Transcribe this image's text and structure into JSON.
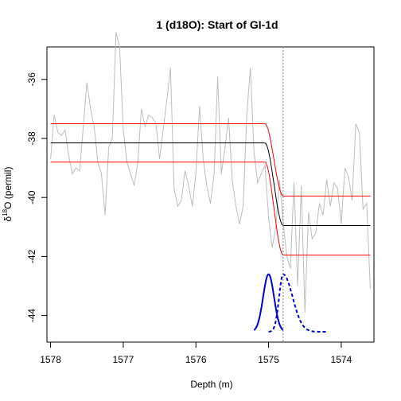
{
  "chart_data": {
    "type": "line",
    "title": "1 (d18O): Start of GI-1d",
    "xlabel": "Depth (m)",
    "ylabel_prefix": "δ",
    "ylabel_sup": "18",
    "ylabel_suffix": "O (permil)",
    "xlim": [
      1578.05,
      1573.55
    ],
    "ylim": [
      -44.9,
      -34.9
    ],
    "x_reversed": true,
    "x_ticks": [
      1578,
      1577,
      1576,
      1575,
      1574
    ],
    "y_ticks": [
      -36,
      -38,
      -40,
      -42,
      -44
    ],
    "vline_x": 1574.8,
    "series": [
      {
        "role": "data",
        "color": "#bebebe",
        "points": [
          [
            1578.0,
            -38.7
          ],
          [
            1577.95,
            -37.2
          ],
          [
            1577.9,
            -37.8
          ],
          [
            1577.85,
            -37.9
          ],
          [
            1577.8,
            -37.7
          ],
          [
            1577.75,
            -38.6
          ],
          [
            1577.7,
            -39.2
          ],
          [
            1577.65,
            -39.0
          ],
          [
            1577.6,
            -39.1
          ],
          [
            1577.55,
            -37.6
          ],
          [
            1577.5,
            -36.1
          ],
          [
            1577.45,
            -37.0
          ],
          [
            1577.4,
            -37.6
          ],
          [
            1577.35,
            -38.8
          ],
          [
            1577.3,
            -39.2
          ],
          [
            1577.25,
            -40.6
          ],
          [
            1577.2,
            -38.3
          ],
          [
            1577.15,
            -38.0
          ],
          [
            1577.1,
            -34.4
          ],
          [
            1577.05,
            -34.9
          ],
          [
            1577.0,
            -37.7
          ],
          [
            1576.95,
            -38.8
          ],
          [
            1576.9,
            -39.2
          ],
          [
            1576.85,
            -39.6
          ],
          [
            1576.8,
            -38.8
          ],
          [
            1576.75,
            -37.0
          ],
          [
            1576.7,
            -37.6
          ],
          [
            1576.65,
            -37.2
          ],
          [
            1576.6,
            -37.3
          ],
          [
            1576.55,
            -37.5
          ],
          [
            1576.5,
            -38.7
          ],
          [
            1576.45,
            -37.7
          ],
          [
            1576.4,
            -36.7
          ],
          [
            1576.35,
            -35.6
          ],
          [
            1576.3,
            -39.7
          ],
          [
            1576.25,
            -40.3
          ],
          [
            1576.2,
            -40.1
          ],
          [
            1576.15,
            -39.1
          ],
          [
            1576.1,
            -39.6
          ],
          [
            1576.05,
            -40.3
          ],
          [
            1576.0,
            -39.2
          ],
          [
            1575.95,
            -36.9
          ],
          [
            1575.9,
            -38.7
          ],
          [
            1575.85,
            -39.6
          ],
          [
            1575.8,
            -40.2
          ],
          [
            1575.75,
            -39.2
          ],
          [
            1575.7,
            -35.9
          ],
          [
            1575.65,
            -39.2
          ],
          [
            1575.6,
            -38.3
          ],
          [
            1575.55,
            -37.3
          ],
          [
            1575.5,
            -39.4
          ],
          [
            1575.45,
            -40.3
          ],
          [
            1575.4,
            -40.9
          ],
          [
            1575.35,
            -40.3
          ],
          [
            1575.3,
            -37.2
          ],
          [
            1575.25,
            -35.6
          ],
          [
            1575.2,
            -38.5
          ],
          [
            1575.15,
            -39.5
          ],
          [
            1575.1,
            -39.2
          ],
          [
            1575.05,
            -38.9
          ],
          [
            1575.0,
            -40.7
          ],
          [
            1574.95,
            -41.7
          ],
          [
            1574.9,
            -41.0
          ],
          [
            1574.85,
            -39.4
          ],
          [
            1574.8,
            -40.8
          ],
          [
            1574.75,
            -42.0
          ],
          [
            1574.7,
            -42.4
          ],
          [
            1574.65,
            -39.5
          ],
          [
            1574.6,
            -43.0
          ],
          [
            1574.55,
            -39.6
          ],
          [
            1574.5,
            -43.9
          ],
          [
            1574.45,
            -40.5
          ],
          [
            1574.4,
            -41.4
          ],
          [
            1574.35,
            -41.2
          ],
          [
            1574.3,
            -40.2
          ],
          [
            1574.25,
            -40.6
          ],
          [
            1574.2,
            -39.4
          ],
          [
            1574.15,
            -40.3
          ],
          [
            1574.1,
            -39.5
          ],
          [
            1574.05,
            -39.7
          ],
          [
            1574.0,
            -40.9
          ],
          [
            1573.95,
            -39.0
          ],
          [
            1573.9,
            -39.3
          ],
          [
            1573.85,
            -40.1
          ],
          [
            1573.8,
            -37.5
          ],
          [
            1573.75,
            -37.8
          ],
          [
            1573.7,
            -40.4
          ],
          [
            1573.65,
            -40.2
          ],
          [
            1573.6,
            -43.1
          ]
        ]
      },
      {
        "role": "fit",
        "color": "#000000",
        "x_start": 1578.0,
        "x_end": 1573.6,
        "level_before": -38.15,
        "level_after": -40.95,
        "t0": 1575.05,
        "t1": 1574.8
      },
      {
        "role": "upper",
        "color": "#ff0000",
        "x_start": 1578.0,
        "x_end": 1573.6,
        "level_before": -37.5,
        "level_after": -39.95,
        "t0": 1575.05,
        "t1": 1574.8
      },
      {
        "role": "lower",
        "color": "#ff0000",
        "x_start": 1578.0,
        "x_end": 1573.6,
        "level_before": -38.8,
        "level_after": -41.95,
        "t0": 1575.05,
        "t1": 1574.8
      }
    ],
    "distributions": [
      {
        "color": "#0000cd",
        "style": "solid",
        "center": 1575.0,
        "sd": 0.075,
        "x_range": [
          1575.2,
          1574.8
        ],
        "y_base": -44.55,
        "y_peak": -42.6
      },
      {
        "color": "#0000cd",
        "style": "dashed",
        "center": 1574.8,
        "sd": 0.055,
        "tail_sd": 0.13,
        "x_range": [
          1575.0,
          1574.2
        ],
        "y_base": -44.55,
        "y_peak": -42.6
      }
    ],
    "grid": false,
    "legend": "none"
  }
}
